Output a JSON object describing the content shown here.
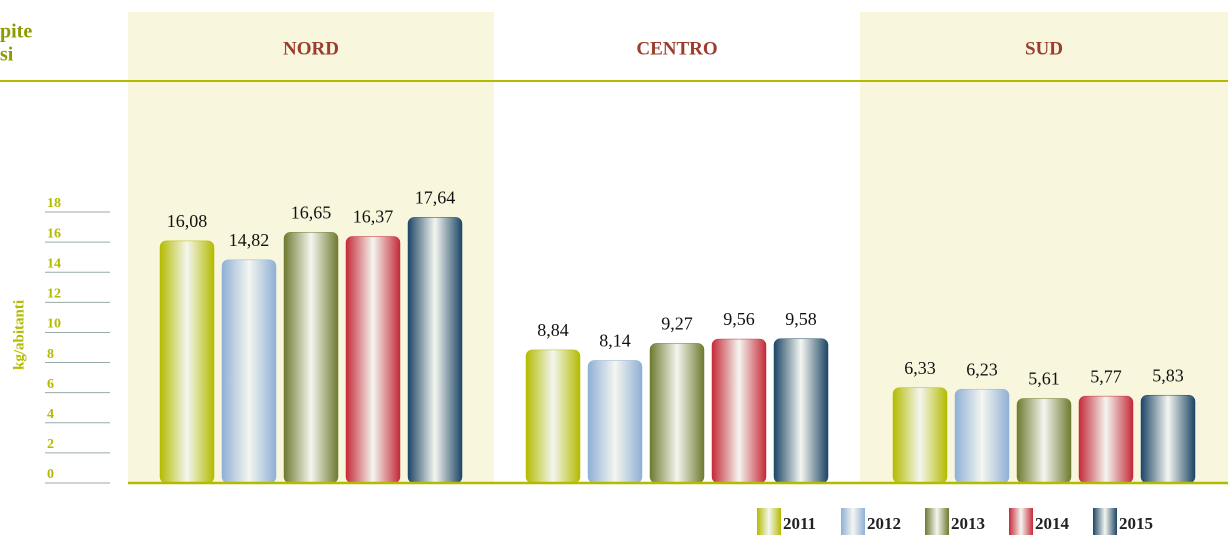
{
  "chart_data": {
    "type": "bar",
    "header_fragments": [
      "pite",
      "si"
    ],
    "y_axis_label": "kg/abitanti",
    "categories": [
      "NORD",
      "CENTRO",
      "SUD"
    ],
    "series": [
      {
        "name": "2011",
        "color": "#b3bb00",
        "values": [
          16.08,
          8.84,
          6.33
        ],
        "value_labels": [
          "16,08",
          "8,84",
          "6,33"
        ]
      },
      {
        "name": "2012",
        "color": "#8fb0d6",
        "values": [
          14.82,
          8.14,
          6.23
        ],
        "value_labels": [
          "14,82",
          "8,14",
          "6,23"
        ]
      },
      {
        "name": "2013",
        "color": "#6f7a30",
        "values": [
          16.65,
          9.27,
          5.61
        ],
        "value_labels": [
          "16,65",
          "9,27",
          "5,61"
        ]
      },
      {
        "name": "2014",
        "color": "#c52a38",
        "values": [
          16.37,
          9.56,
          5.77
        ],
        "value_labels": [
          "16,37",
          "9,56",
          "5,77"
        ]
      },
      {
        "name": "2015",
        "color": "#1d4666",
        "values": [
          17.64,
          9.58,
          5.83
        ],
        "value_labels": [
          "17,64",
          "9,58",
          "5,83"
        ]
      }
    ],
    "ylim": [
      0,
      18
    ],
    "yticks": [
      0,
      2,
      4,
      6,
      8,
      10,
      12,
      14,
      16,
      18
    ],
    "legend": "bottom-right"
  }
}
